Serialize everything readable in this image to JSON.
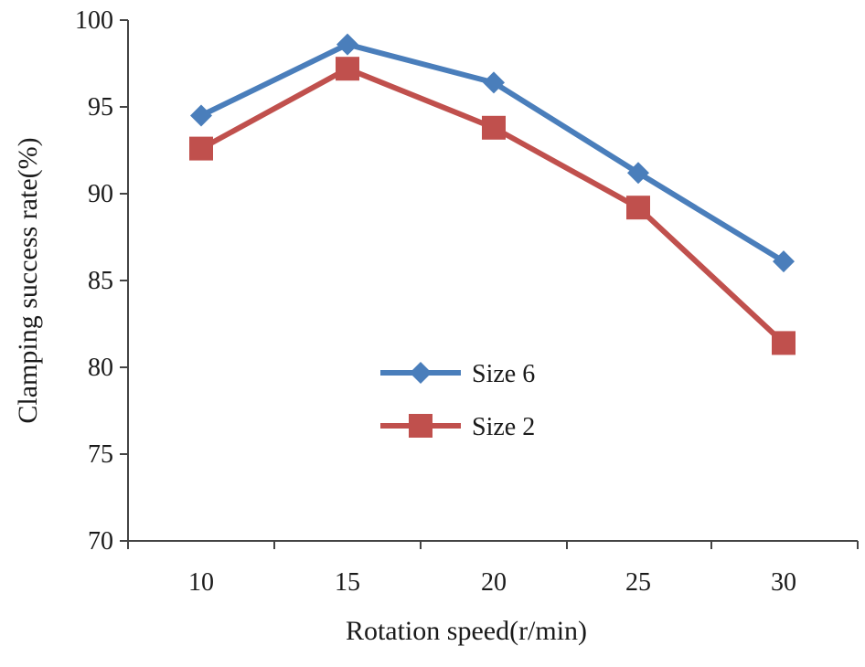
{
  "chart_data": {
    "type": "line",
    "title": "",
    "xlabel": "Rotation speed(r/min)",
    "ylabel": "Clamping success rate(%)",
    "x": [
      10,
      15,
      20,
      25,
      30
    ],
    "x_tick_labels": [
      "10",
      "15",
      "20",
      "25",
      "30"
    ],
    "ylim": [
      70,
      100
    ],
    "y_ticks": [
      70,
      75,
      80,
      85,
      90,
      95,
      100
    ],
    "y_tick_labels": [
      "70",
      "75",
      "80",
      "85",
      "90",
      "95",
      "100"
    ],
    "grid": false,
    "legend_position": "center",
    "series": [
      {
        "name": "Size 6",
        "values": [
          94.5,
          98.6,
          96.4,
          91.2,
          86.1
        ],
        "color": "#4a7ebb",
        "marker": "diamond"
      },
      {
        "name": "Size 2",
        "values": [
          92.6,
          97.2,
          93.8,
          89.2,
          81.4
        ],
        "color": "#c0504d",
        "marker": "square"
      }
    ]
  }
}
